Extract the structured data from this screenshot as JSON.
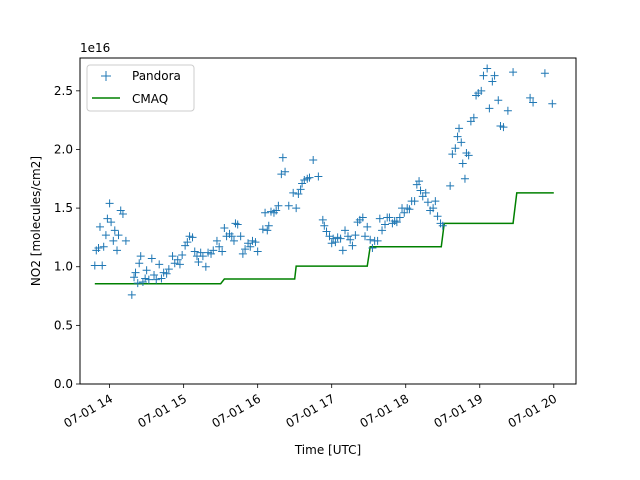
{
  "chart_data": {
    "type": "line",
    "title": "",
    "xlabel": "Time [UTC]",
    "ylabel": "NO2 [molecules/cm2]",
    "y_multiplier_label": "1e16",
    "x_ticks": [
      "07-01 14",
      "07-01 15",
      "07-01 16",
      "07-01 17",
      "07-01 18",
      "07-01 19",
      "07-01 20"
    ],
    "y_ticks": [
      "0.0",
      "0.5",
      "1.0",
      "1.5",
      "2.0",
      "2.5"
    ],
    "xlim": [
      13.6,
      20.3
    ],
    "ylim": [
      0,
      2.78
    ],
    "legend_position": "upper-left",
    "grid": false,
    "colors": {
      "pandora": "#1f77b4",
      "cmaq": "#008000"
    },
    "series": [
      {
        "name": "Pandora",
        "marker": "+",
        "points": [
          [
            13.8,
            1.01
          ],
          [
            13.82,
            1.14
          ],
          [
            13.85,
            1.16
          ],
          [
            13.87,
            1.34
          ],
          [
            13.9,
            1.01
          ],
          [
            13.92,
            1.17
          ],
          [
            13.95,
            1.27
          ],
          [
            13.97,
            1.41
          ],
          [
            14.0,
            1.54
          ],
          [
            14.02,
            1.38
          ],
          [
            14.05,
            1.22
          ],
          [
            14.07,
            1.31
          ],
          [
            14.1,
            1.14
          ],
          [
            14.12,
            1.27
          ],
          [
            14.15,
            1.48
          ],
          [
            14.18,
            1.45
          ],
          [
            14.22,
            1.22
          ],
          [
            14.3,
            0.76
          ],
          [
            14.33,
            0.91
          ],
          [
            14.35,
            0.95
          ],
          [
            14.38,
            0.86
          ],
          [
            14.4,
            1.03
          ],
          [
            14.42,
            1.09
          ],
          [
            14.45,
            0.87
          ],
          [
            14.48,
            0.9
          ],
          [
            14.5,
            0.97
          ],
          [
            14.53,
            0.89
          ],
          [
            14.57,
            1.07
          ],
          [
            14.6,
            0.93
          ],
          [
            14.63,
            0.89
          ],
          [
            14.67,
            1.02
          ],
          [
            14.7,
            0.9
          ],
          [
            14.73,
            0.95
          ],
          [
            14.77,
            0.94
          ],
          [
            14.8,
            0.98
          ],
          [
            14.85,
            1.09
          ],
          [
            14.88,
            1.03
          ],
          [
            14.92,
            1.06
          ],
          [
            14.95,
            1.02
          ],
          [
            14.98,
            1.1
          ],
          [
            15.02,
            1.18
          ],
          [
            15.05,
            1.21
          ],
          [
            15.08,
            1.26
          ],
          [
            15.12,
            1.25
          ],
          [
            15.15,
            1.13
          ],
          [
            15.18,
            1.09
          ],
          [
            15.2,
            1.04
          ],
          [
            15.23,
            1.12
          ],
          [
            15.26,
            1.09
          ],
          [
            15.3,
            1.0
          ],
          [
            15.33,
            1.12
          ],
          [
            15.37,
            1.11
          ],
          [
            15.4,
            1.14
          ],
          [
            15.45,
            1.22
          ],
          [
            15.48,
            1.17
          ],
          [
            15.52,
            1.13
          ],
          [
            15.55,
            1.33
          ],
          [
            15.58,
            1.26
          ],
          [
            15.62,
            1.28
          ],
          [
            15.65,
            1.26
          ],
          [
            15.68,
            1.22
          ],
          [
            15.7,
            1.37
          ],
          [
            15.73,
            1.36
          ],
          [
            15.77,
            1.26
          ],
          [
            15.8,
            1.11
          ],
          [
            15.83,
            1.15
          ],
          [
            15.87,
            1.2
          ],
          [
            15.9,
            1.17
          ],
          [
            15.93,
            1.22
          ],
          [
            15.97,
            1.21
          ],
          [
            16.0,
            1.13
          ],
          [
            16.07,
            1.32
          ],
          [
            16.1,
            1.46
          ],
          [
            16.13,
            1.31
          ],
          [
            16.15,
            1.35
          ],
          [
            16.18,
            1.47
          ],
          [
            16.22,
            1.46
          ],
          [
            16.25,
            1.48
          ],
          [
            16.28,
            1.52
          ],
          [
            16.32,
            1.79
          ],
          [
            16.34,
            1.93
          ],
          [
            16.37,
            1.81
          ],
          [
            16.42,
            1.52
          ],
          [
            16.48,
            1.63
          ],
          [
            16.52,
            1.5
          ],
          [
            16.55,
            1.62
          ],
          [
            16.58,
            1.66
          ],
          [
            16.6,
            1.71
          ],
          [
            16.63,
            1.74
          ],
          [
            16.67,
            1.75
          ],
          [
            16.7,
            1.76
          ],
          [
            16.75,
            1.91
          ],
          [
            16.82,
            1.77
          ],
          [
            16.88,
            1.4
          ],
          [
            16.9,
            1.35
          ],
          [
            16.93,
            1.3
          ],
          [
            16.97,
            1.26
          ],
          [
            17.0,
            1.2
          ],
          [
            17.02,
            1.24
          ],
          [
            17.05,
            1.21
          ],
          [
            17.08,
            1.25
          ],
          [
            17.12,
            1.24
          ],
          [
            17.15,
            1.14
          ],
          [
            17.18,
            1.31
          ],
          [
            17.22,
            1.26
          ],
          [
            17.25,
            1.23
          ],
          [
            17.28,
            1.18
          ],
          [
            17.32,
            1.27
          ],
          [
            17.35,
            1.38
          ],
          [
            17.38,
            1.4
          ],
          [
            17.42,
            1.42
          ],
          [
            17.45,
            1.26
          ],
          [
            17.48,
            1.34
          ],
          [
            17.52,
            1.23
          ],
          [
            17.55,
            1.16
          ],
          [
            17.58,
            1.22
          ],
          [
            17.62,
            1.22
          ],
          [
            17.65,
            1.41
          ],
          [
            17.68,
            1.31
          ],
          [
            17.72,
            1.36
          ],
          [
            17.75,
            1.42
          ],
          [
            17.78,
            1.42
          ],
          [
            17.82,
            1.37
          ],
          [
            17.85,
            1.39
          ],
          [
            17.88,
            1.38
          ],
          [
            17.92,
            1.42
          ],
          [
            17.95,
            1.5
          ],
          [
            17.98,
            1.46
          ],
          [
            18.02,
            1.5
          ],
          [
            18.05,
            1.49
          ],
          [
            18.08,
            1.56
          ],
          [
            18.12,
            1.56
          ],
          [
            18.15,
            1.7
          ],
          [
            18.18,
            1.73
          ],
          [
            18.2,
            1.65
          ],
          [
            18.23,
            1.6
          ],
          [
            18.27,
            1.63
          ],
          [
            18.3,
            1.55
          ],
          [
            18.33,
            1.48
          ],
          [
            18.37,
            1.5
          ],
          [
            18.4,
            1.56
          ],
          [
            18.43,
            1.43
          ],
          [
            18.47,
            1.37
          ],
          [
            18.5,
            1.35
          ],
          [
            18.6,
            1.69
          ],
          [
            18.63,
            1.96
          ],
          [
            18.67,
            2.01
          ],
          [
            18.7,
            2.11
          ],
          [
            18.72,
            2.18
          ],
          [
            18.75,
            2.06
          ],
          [
            18.77,
            1.88
          ],
          [
            18.8,
            1.75
          ],
          [
            18.82,
            1.97
          ],
          [
            18.85,
            1.95
          ],
          [
            18.88,
            2.24
          ],
          [
            18.92,
            2.27
          ],
          [
            18.95,
            2.46
          ],
          [
            18.98,
            2.48
          ],
          [
            19.02,
            2.5
          ],
          [
            19.05,
            2.63
          ],
          [
            19.1,
            2.69
          ],
          [
            19.13,
            2.35
          ],
          [
            19.17,
            2.58
          ],
          [
            19.2,
            2.63
          ],
          [
            19.25,
            2.42
          ],
          [
            19.28,
            2.2
          ],
          [
            19.32,
            2.19
          ],
          [
            19.38,
            2.33
          ],
          [
            19.45,
            2.66
          ],
          [
            19.68,
            2.44
          ],
          [
            19.72,
            2.4
          ],
          [
            19.88,
            2.65
          ],
          [
            19.98,
            2.39
          ]
        ]
      },
      {
        "name": "CMAQ",
        "line": "step",
        "points": [
          [
            13.8,
            0.855
          ],
          [
            15.5,
            0.855
          ],
          [
            15.55,
            0.895
          ],
          [
            16.5,
            0.895
          ],
          [
            16.52,
            1.005
          ],
          [
            17.48,
            1.005
          ],
          [
            17.52,
            1.17
          ],
          [
            18.48,
            1.17
          ],
          [
            18.52,
            1.37
          ],
          [
            19.45,
            1.37
          ],
          [
            19.5,
            1.63
          ],
          [
            20.0,
            1.63
          ]
        ]
      }
    ]
  }
}
